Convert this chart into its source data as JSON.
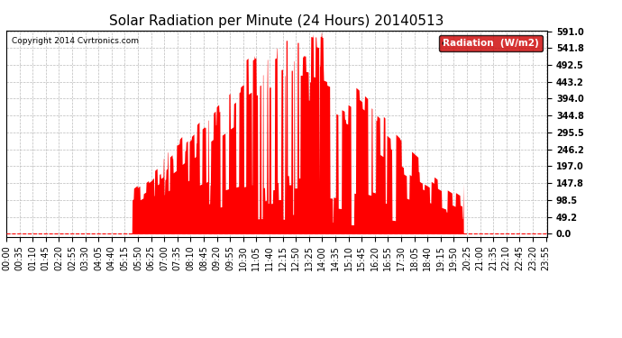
{
  "title": "Solar Radiation per Minute (24 Hours) 20140513",
  "copyright_text": "Copyright 2014 Cvrtronics.com",
  "legend_label": "Radiation  (W/m2)",
  "yticks": [
    0.0,
    49.2,
    98.5,
    147.8,
    197.0,
    246.2,
    295.5,
    344.8,
    394.0,
    443.2,
    492.5,
    541.8,
    591.0
  ],
  "ymax": 591.0,
  "bar_color": "#FF0000",
  "legend_bg": "#CC0000",
  "legend_text_color": "#FFFFFF",
  "background_color": "#FFFFFF",
  "grid_color": "#BBBBBB",
  "title_fontsize": 11,
  "tick_fontsize": 7,
  "xtick_step": 35,
  "sunrise_min": 335,
  "sunset_min": 1215
}
